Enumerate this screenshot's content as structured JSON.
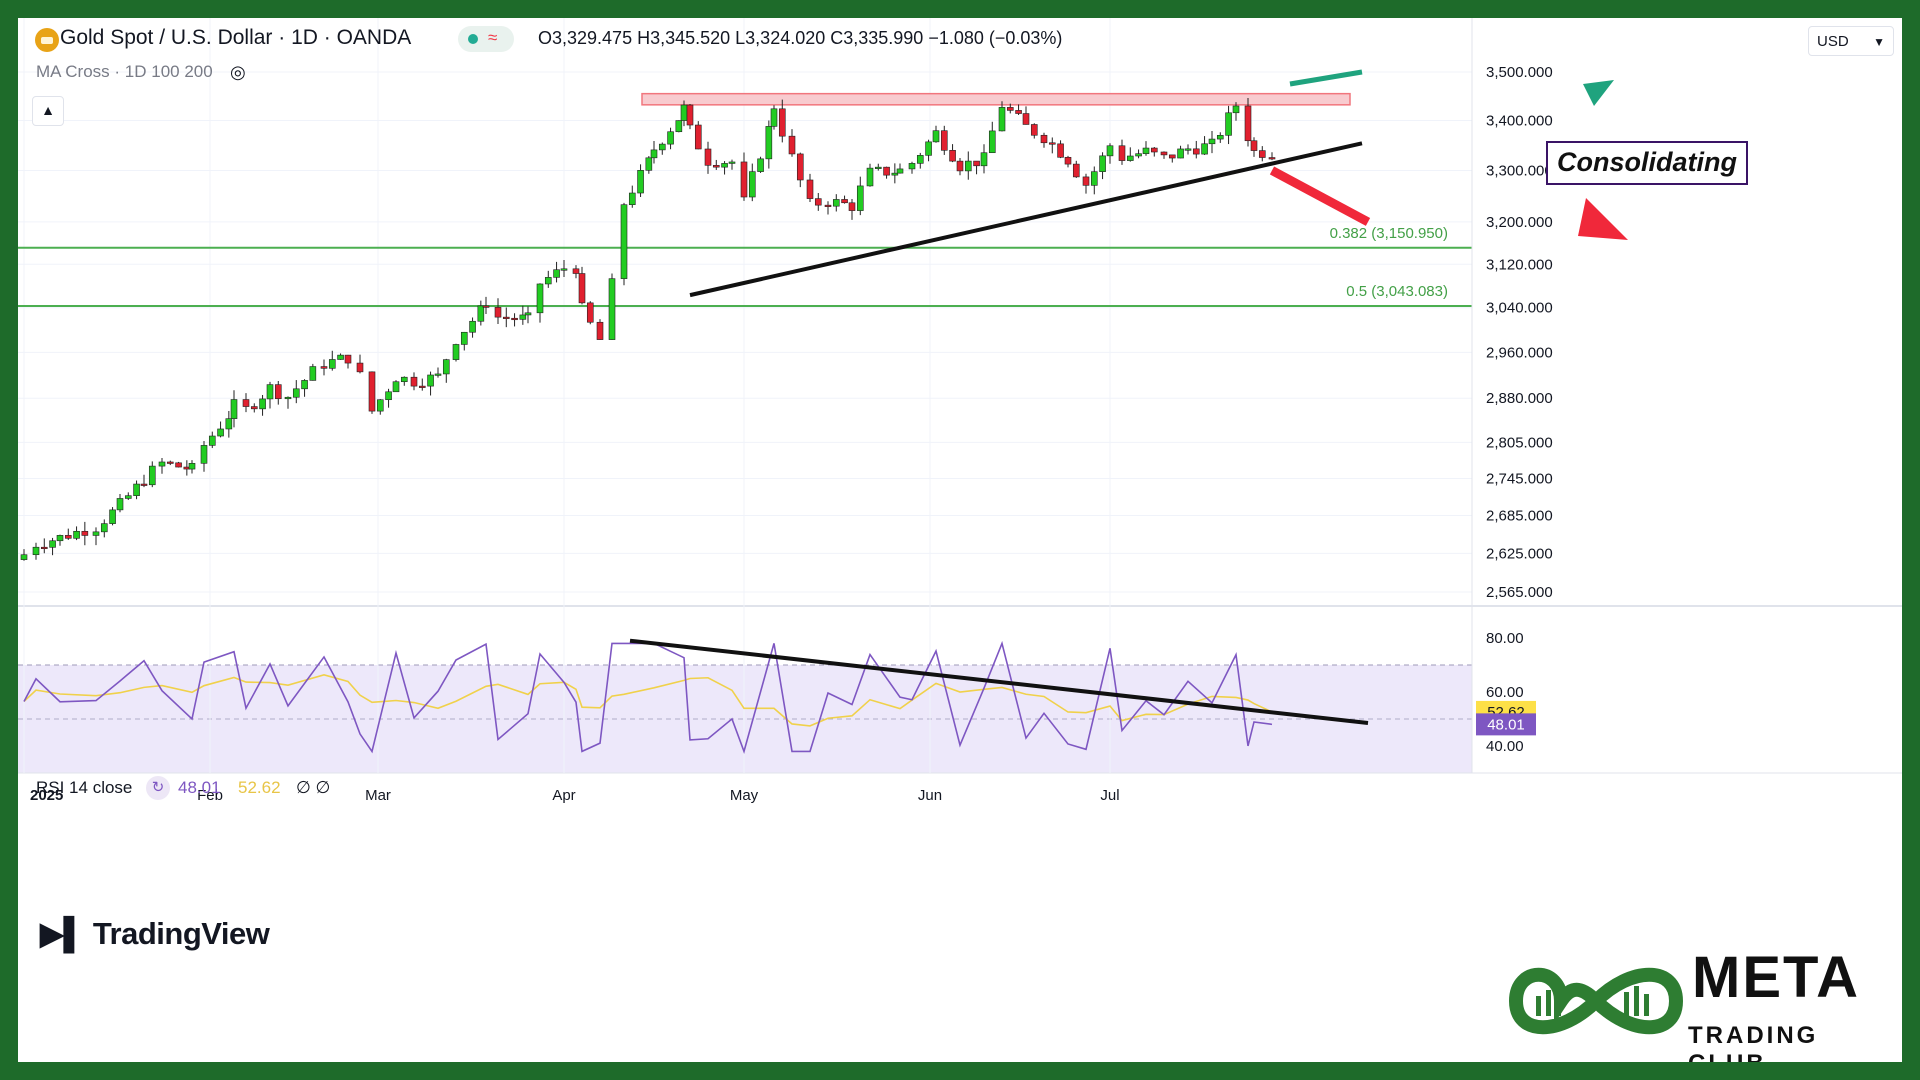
{
  "header": {
    "symbol_title": "Gold Spot / U.S. Dollar · 1D · OANDA",
    "ohlc": "O3,329.475  H3,345.520  L3,324.020  C3,335.990  −1.080 (−0.03%)",
    "indicator": "MA Cross · 1D 100 200",
    "currency": "USD",
    "icons": [
      "gold-coin-icon",
      "eye-hidden-icon",
      "chevron-up-icon",
      "chevron-down-icon"
    ]
  },
  "rsi_legend": {
    "title": "RSI 14 close",
    "value_rsi": "48.01",
    "value_ma": "52.62",
    "value_x": "∅ ∅"
  },
  "annotations": {
    "consolidating": "Consolidating",
    "fib_0382": "0.382 (3,150.950)",
    "fib_05": "0.5 (3,043.083)"
  },
  "branding": {
    "tradingview": "TradingView",
    "meta": "META",
    "trading_club": "TRADING CLUB"
  },
  "colors": {
    "up": "#22cc22",
    "down": "#e0202f",
    "fib_line": "#4caf50",
    "resistance_fill": "#f8c6ca",
    "resistance_stroke": "#f06870",
    "trend_line": "#111111",
    "arrow_up": "#1fa37e",
    "arrow_down": "#f0283a",
    "rsi_line": "#7e57c2",
    "rsi_ma": "#f0d14a",
    "rsi_band": "#ede8fa",
    "frame": "#1e6b2a"
  },
  "chart_data": [
    {
      "type": "candlestick",
      "title": "Gold Spot / U.S. Dollar · 1D · OANDA",
      "y_scale": "log",
      "ylim": [
        2520,
        3530
      ],
      "y_ticks": [
        "3,500.000",
        "3,400.000",
        "3,300.000",
        "3,200.000",
        "3,120.000",
        "3,040.000",
        "2,960.000",
        "2,880.000",
        "2,805.000",
        "2,745.000",
        "2,685.000",
        "2,625.000",
        "2,565.000"
      ],
      "x_labels": [
        "2025",
        "Feb",
        "Mar",
        "Apr",
        "May",
        "Jun",
        "Jul"
      ],
      "x_label_dates": [
        "2025-01-01",
        "2025-02-01",
        "2025-03-01",
        "2025-04-01",
        "2025-05-01",
        "2025-06-01",
        "2025-07-01"
      ],
      "series": [
        {
          "date": "2025-01-01",
          "close": 2623
        },
        {
          "date": "2025-01-03",
          "close": 2640
        },
        {
          "date": "2025-01-07",
          "close": 2650
        },
        {
          "date": "2025-01-13",
          "close": 2667
        },
        {
          "date": "2025-01-17",
          "close": 2702
        },
        {
          "date": "2025-01-21",
          "close": 2744
        },
        {
          "date": "2025-01-24",
          "close": 2770
        },
        {
          "date": "2025-01-29",
          "close": 2760
        },
        {
          "date": "2025-01-31",
          "close": 2800
        },
        {
          "date": "2025-02-05",
          "close": 2867
        },
        {
          "date": "2025-02-07",
          "close": 2860
        },
        {
          "date": "2025-02-11",
          "close": 2898
        },
        {
          "date": "2025-02-14",
          "close": 2883
        },
        {
          "date": "2025-02-20",
          "close": 2940
        },
        {
          "date": "2025-02-24",
          "close": 2951
        },
        {
          "date": "2025-02-26",
          "close": 2918
        },
        {
          "date": "2025-02-28",
          "close": 2858
        },
        {
          "date": "2025-03-04",
          "close": 2917
        },
        {
          "date": "2025-03-07",
          "close": 2910
        },
        {
          "date": "2025-03-11",
          "close": 2917
        },
        {
          "date": "2025-03-14",
          "close": 2984
        },
        {
          "date": "2025-03-19",
          "close": 3050
        },
        {
          "date": "2025-03-21",
          "close": 3023
        },
        {
          "date": "2025-03-26",
          "close": 3019
        },
        {
          "date": "2025-03-28",
          "close": 3085
        },
        {
          "date": "2025-04-01",
          "close": 3113
        },
        {
          "date": "2025-04-03",
          "close": 3114
        },
        {
          "date": "2025-04-04",
          "close": 3037
        },
        {
          "date": "2025-04-07",
          "close": 2982
        },
        {
          "date": "2025-04-09",
          "close": 3082
        },
        {
          "date": "2025-04-11",
          "close": 3236
        },
        {
          "date": "2025-04-16",
          "close": 3343
        },
        {
          "date": "2025-04-21",
          "close": 3425
        },
        {
          "date": "2025-04-22",
          "close": 3380
        },
        {
          "date": "2025-04-25",
          "close": 3320
        },
        {
          "date": "2025-04-29",
          "close": 3317
        },
        {
          "date": "2025-05-01",
          "close": 3238
        },
        {
          "date": "2025-05-06",
          "close": 3430
        },
        {
          "date": "2025-05-09",
          "close": 3325
        },
        {
          "date": "2025-05-12",
          "close": 3233
        },
        {
          "date": "2025-05-15",
          "close": 3240
        },
        {
          "date": "2025-05-19",
          "close": 3231
        },
        {
          "date": "2025-05-22",
          "close": 3295
        },
        {
          "date": "2025-05-27",
          "close": 3300
        },
        {
          "date": "2025-05-29",
          "close": 3315
        },
        {
          "date": "2025-06-02",
          "close": 3375
        },
        {
          "date": "2025-06-06",
          "close": 3310
        },
        {
          "date": "2025-06-10",
          "close": 3322
        },
        {
          "date": "2025-06-13",
          "close": 3432
        },
        {
          "date": "2025-06-17",
          "close": 3387
        },
        {
          "date": "2025-06-20",
          "close": 3367
        },
        {
          "date": "2025-06-24",
          "close": 3322
        },
        {
          "date": "2025-06-27",
          "close": 3273
        },
        {
          "date": "2025-07-01",
          "close": 3350
        },
        {
          "date": "2025-07-03",
          "close": 3326
        },
        {
          "date": "2025-07-07",
          "close": 3337
        },
        {
          "date": "2025-07-10",
          "close": 3324
        },
        {
          "date": "2025-07-14",
          "close": 3343
        },
        {
          "date": "2025-07-18",
          "close": 3350
        },
        {
          "date": "2025-07-22",
          "close": 3432
        },
        {
          "date": "2025-07-24",
          "close": 3368
        },
        {
          "date": "2025-07-25",
          "close": 3337
        },
        {
          "date": "2025-07-28",
          "close": 3335.99
        }
      ],
      "legend": "none",
      "grid": "on"
    },
    {
      "type": "line",
      "title": "RSI 14 close",
      "ylim": [
        20,
        80
      ],
      "y_ticks": [
        "80.00",
        "60.00",
        "40.00"
      ],
      "series": [
        {
          "name": "RSI",
          "last": 48.01
        },
        {
          "name": "RSI MA",
          "last": 52.62
        }
      ]
    }
  ]
}
